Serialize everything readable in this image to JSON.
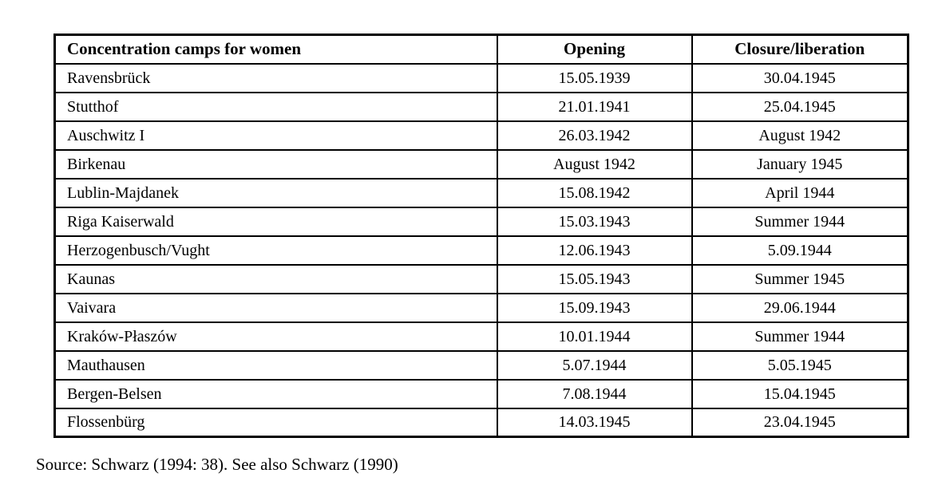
{
  "table": {
    "headers": [
      "Concentration camps for women",
      "Opening",
      "Closure/liberation"
    ],
    "rows": [
      [
        "Ravensbrück",
        "15.05.1939",
        "30.04.1945"
      ],
      [
        "Stutthof",
        "21.01.1941",
        "25.04.1945"
      ],
      [
        "Auschwitz I",
        "26.03.1942",
        "August 1942"
      ],
      [
        "Birkenau",
        "August 1942",
        "January 1945"
      ],
      [
        "Lublin-Majdanek",
        "15.08.1942",
        "April 1944"
      ],
      [
        "Riga Kaiserwald",
        "15.03.1943",
        "Summer 1944"
      ],
      [
        "Herzogenbusch/Vught",
        "12.06.1943",
        "5.09.1944"
      ],
      [
        "Kaunas",
        "15.05.1943",
        "Summer 1945"
      ],
      [
        "Vaivara",
        "15.09.1943",
        "29.06.1944"
      ],
      [
        "Kraków-Płaszów",
        "10.01.1944",
        "Summer 1944"
      ],
      [
        "Mauthausen",
        "5.07.1944",
        "5.05.1945"
      ],
      [
        "Bergen-Belsen",
        "7.08.1944",
        "15.04.1945"
      ],
      [
        "Flossenbürg",
        "14.03.1945",
        "23.04.1945"
      ]
    ]
  },
  "source_note": "Source: Schwarz (1994: 38). See also Schwarz (1990)",
  "colors": {
    "text": "#000000",
    "border": "#000000",
    "background": "#ffffff"
  }
}
